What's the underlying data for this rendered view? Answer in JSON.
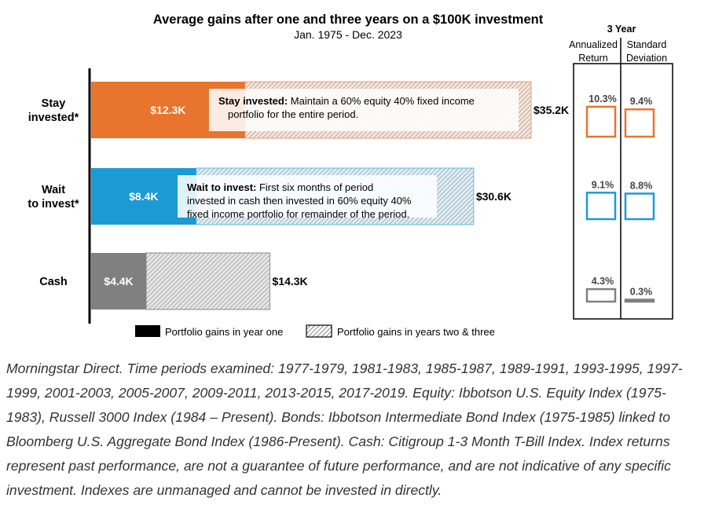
{
  "chart_data": {
    "type": "bar",
    "title": "Average gains after one and three years on a $100K investment",
    "subtitle": "Jan. 1975 - Dec. 2023",
    "categories": [
      {
        "label_lines": [
          "Stay",
          "invested*"
        ],
        "year_one": 12.3,
        "year_one_label": "$12.3K",
        "total": 35.2,
        "total_label": "$35.2K",
        "color": "#E8742E",
        "hatch_bg": "#F7E5DB",
        "note_bold": "Stay invested:",
        "note_lines": [
          "Maintain a 60% equity 40% fixed income",
          "portfolio for the entire period."
        ]
      },
      {
        "label_lines": [
          "Wait",
          "to invest*"
        ],
        "year_one": 8.4,
        "year_one_label": "$8.4K",
        "total": 30.6,
        "total_label": "$30.6K",
        "color": "#1C9AD6",
        "hatch_bg": "#DDEEF7",
        "note_bold": "Wait to invest:",
        "note_lines": [
          "First six months of period",
          "invested in cash then invested in 60% equity 40%",
          "fixed income portfolio for remainder of the period."
        ]
      },
      {
        "label_lines": [
          "Cash"
        ],
        "year_one": 4.4,
        "year_one_label": "$4.4K",
        "total": 14.3,
        "total_label": "$14.3K",
        "color": "#808080",
        "hatch_bg": "#E6E6E6",
        "note_bold": "",
        "note_lines": []
      }
    ],
    "xlim": [
      0,
      35.2
    ],
    "legend": {
      "placement": "bottom",
      "items": [
        "Portfolio gains in year one",
        "Portfolio gains in years two & three"
      ]
    },
    "side_panel": {
      "title": "3 Year",
      "col1_lines": [
        "Annualized",
        "Return"
      ],
      "col2_lines": [
        "Standard",
        "Deviation"
      ],
      "rows": [
        {
          "ret": 10.3,
          "ret_label": "10.3%",
          "sd": 9.4,
          "sd_label": "9.4%",
          "color": "#E8742E"
        },
        {
          "ret": 9.1,
          "ret_label": "9.1%",
          "sd": 8.8,
          "sd_label": "8.8%",
          "color": "#1C9AD6"
        },
        {
          "ret": 4.3,
          "ret_label": "4.3%",
          "sd": 0.3,
          "sd_label": "0.3%",
          "color": "#808080"
        }
      ]
    }
  },
  "footnote": "Morningstar Direct. Time periods examined: 1977-1979, 1981-1983, 1985-1987, 1989-1991, 1993-1995, 1997-1999, 2001-2003, 2005-2007, 2009-2011, 2013-2015, 2017-2019. Equity: Ibbotson U.S. Equity Index (1975-1983), Russell 3000 Index (1984 – Present). Bonds: Ibbotson Intermediate Bond Index (1975-1985) linked to Bloomberg U.S. Aggregate Bond Index (1986-Present). Cash: Citigroup 1-3 Month T-Bill Index. Index returns represent past performance, are not a guarantee of future performance, and are not indicative of any specific investment. Indexes are unmanaged and cannot be invested in directly."
}
